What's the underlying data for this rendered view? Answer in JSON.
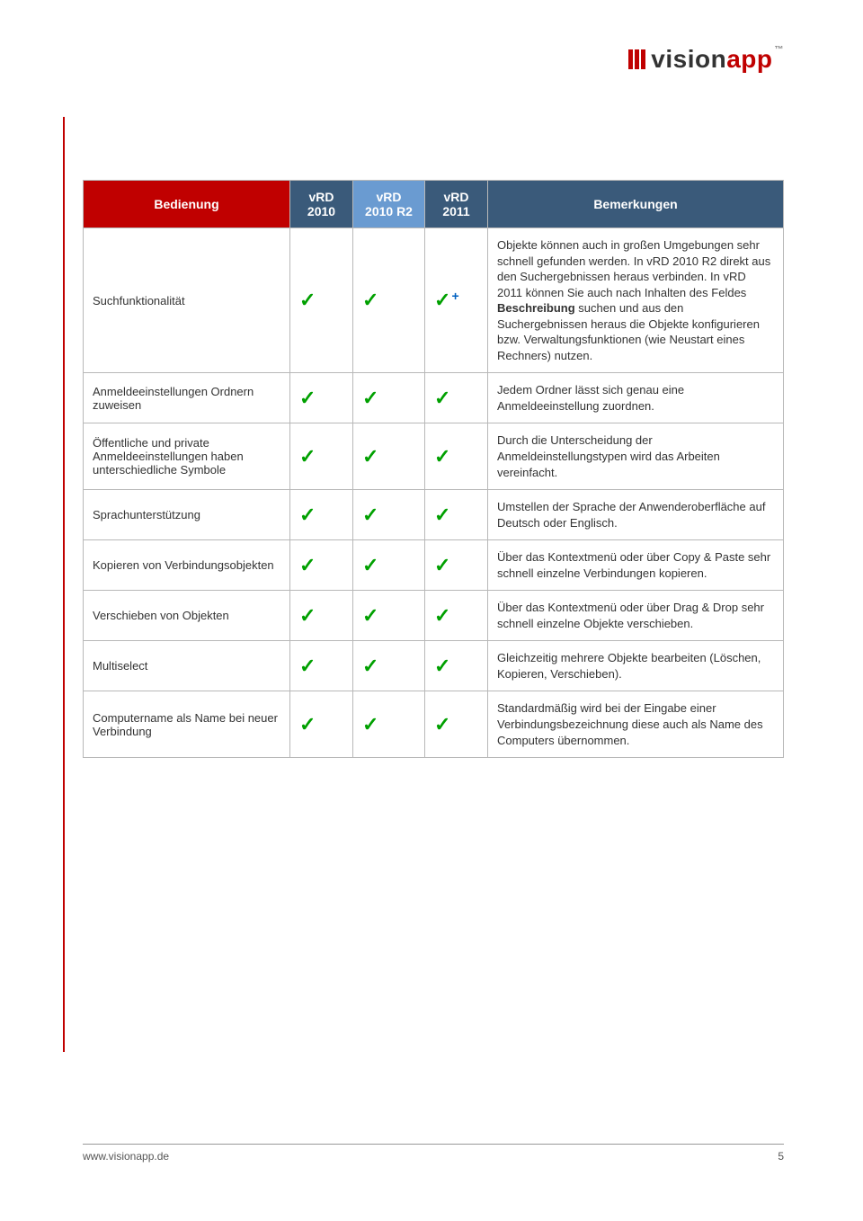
{
  "logo": {
    "brand": "vision",
    "suffix": "app",
    "tm": "™"
  },
  "table": {
    "headers": {
      "feature": "Bedienung",
      "c2010": "vRD 2010",
      "c2010r2": "vRD 2010 R2",
      "c2011": "vRD 2011",
      "notes": "Bemerkungen"
    },
    "rows": [
      {
        "feature": "Suchfunktionalität",
        "v2010": "check",
        "v2010r2": "check",
        "v2011": "checkplus",
        "notes_html": "Objekte können auch in großen Umgebungen sehr schnell gefunden werden. In vRD 2010 R2 direkt aus den Suchergebnissen heraus verbinden. In vRD 2011 können Sie auch nach Inhalten des Feldes <b>Beschreibung</b> suchen und aus den Suchergebnissen heraus die Objekte konfigurieren bzw. Verwaltungsfunktionen (wie Neustart eines Rechners) nutzen."
      },
      {
        "feature": "Anmeldeeinstellungen Ordnern zuweisen",
        "v2010": "check",
        "v2010r2": "check",
        "v2011": "check",
        "notes": "Jedem Ordner lässt sich genau eine Anmeldeeinstellung zuordnen."
      },
      {
        "feature": "Öffentliche und private Anmeldeeinstellungen haben unterschiedliche Symbole",
        "v2010": "check",
        "v2010r2": "check",
        "v2011": "check",
        "notes": "Durch die Unterscheidung der Anmeldeinstellungstypen wird das Arbeiten vereinfacht."
      },
      {
        "feature": "Sprachunterstützung",
        "v2010": "check",
        "v2010r2": "check",
        "v2011": "check",
        "notes": "Umstellen der Sprache der Anwenderoberfläche auf Deutsch oder Englisch."
      },
      {
        "feature": "Kopieren von Verbindungsobjekten",
        "v2010": "check",
        "v2010r2": "check",
        "v2011": "check",
        "notes": "Über das Kontextmenü oder über Copy & Paste sehr schnell einzelne Verbindungen kopieren."
      },
      {
        "feature": "Verschieben von Objekten",
        "v2010": "check",
        "v2010r2": "check",
        "v2011": "check",
        "notes": "Über das Kontextmenü oder über Drag & Drop sehr schnell einzelne Objekte verschieben."
      },
      {
        "feature": "Multiselect",
        "v2010": "check",
        "v2010r2": "check",
        "v2011": "check",
        "notes": "Gleichzeitig mehrere Objekte bearbeiten (Löschen, Kopieren, Verschieben)."
      },
      {
        "feature": "Computername als Name bei neuer Verbindung",
        "v2010": "check",
        "v2010r2": "check",
        "v2011": "check",
        "notes": "Standardmäßig wird bei der Eingabe einer Verbindungsbezeichnung diese auch als Name des Computers übernommen."
      }
    ]
  },
  "footer": {
    "url": "www.visionapp.de",
    "page": "5"
  },
  "colors": {
    "brand_red": "#c00000",
    "header_dark": "#3a5a7a",
    "header_light": "#6a9bd1",
    "check_green": "#00a000",
    "border": "#b8b8b8"
  }
}
